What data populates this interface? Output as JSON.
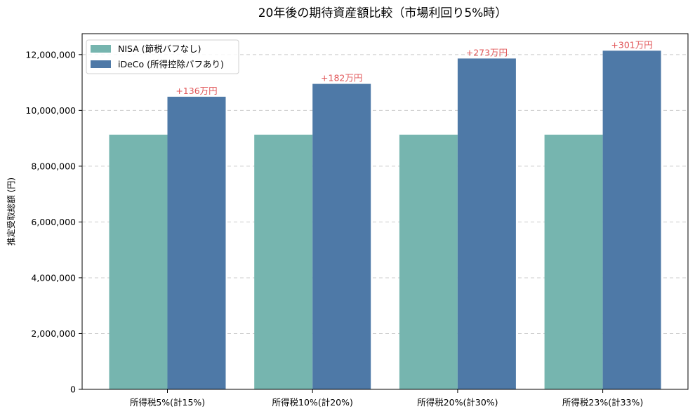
{
  "chart_data": {
    "type": "bar",
    "title": "20年後の期待資産額比較（市場利回り5%時）",
    "xlabel": "",
    "ylabel": "推定受取総額 (円)",
    "categories": [
      "所得税5%(計15%)",
      "所得税10%(計20%)",
      "所得税20%(計30%)",
      "所得税23%(計33%)"
    ],
    "series": [
      {
        "name": "NISA (節税バフなし)",
        "color": "#76b5af",
        "values": [
          9130000,
          9130000,
          9130000,
          9130000
        ]
      },
      {
        "name": "iDeCo (所得控除バフあり)",
        "color": "#4e79a7",
        "values": [
          10490000,
          10950000,
          11860000,
          12140000
        ]
      }
    ],
    "annotations": [
      "+136万円",
      "+182万円",
      "+273万円",
      "+301万円"
    ],
    "annotation_color": "#e15759",
    "ylim": [
      0,
      12750000
    ],
    "yticks": [
      0,
      2000000,
      4000000,
      6000000,
      8000000,
      10000000,
      12000000
    ],
    "ytick_labels": [
      "0",
      "2,000,000",
      "4,000,000",
      "6,000,000",
      "8,000,000",
      "10,000,000",
      "12,000,000"
    ],
    "grid": true,
    "legend_position": "top-left"
  }
}
